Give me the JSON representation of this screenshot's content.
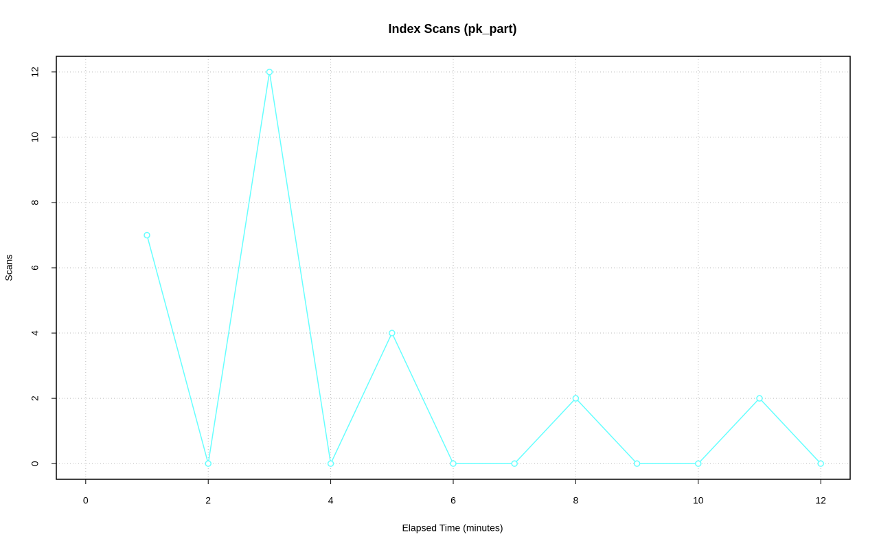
{
  "chart_data": {
    "type": "line",
    "title": "Index Scans (pk_part)",
    "x_label": "Elapsed Time (minutes)",
    "y_label": "Scans",
    "x": [
      1,
      2,
      3,
      4,
      5,
      6,
      7,
      8,
      9,
      10,
      11,
      12
    ],
    "values": [
      7,
      0,
      12,
      0,
      4,
      0,
      0,
      2,
      0,
      0,
      2,
      0
    ],
    "color": "#66ffff",
    "xlim": [
      -0.48,
      12.48
    ],
    "xticks": [
      0,
      2,
      4,
      6,
      8,
      10,
      12
    ],
    "ylim": [
      -0.48,
      12.48
    ],
    "yticks": [
      0,
      2,
      4,
      6,
      8,
      10,
      12
    ],
    "grid": true
  }
}
